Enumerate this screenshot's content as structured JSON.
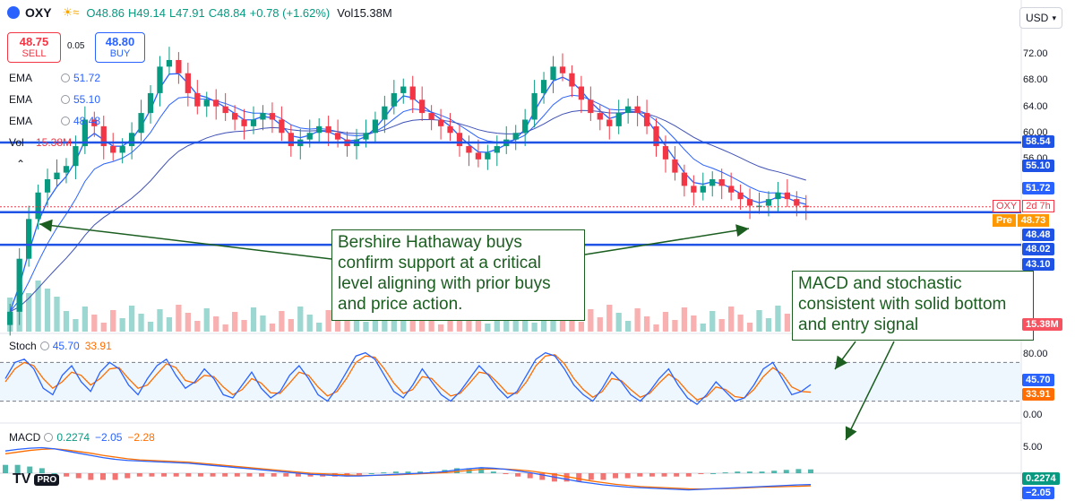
{
  "header": {
    "symbol": "OXY",
    "weather_icon": "sun-cloud-icon",
    "open": "O48.86",
    "high": "H49.14",
    "low": "L47.91",
    "close": "C48.84",
    "change": "+0.78 (+1.62%)",
    "volume": "Vol15.38M",
    "currency": "USD"
  },
  "trade": {
    "sell_price": "48.75",
    "sell_label": "SELL",
    "spread": "0.05",
    "buy_price": "48.80",
    "buy_label": "BUY"
  },
  "indicators": {
    "ema_label": "EMA",
    "ema1": "51.72",
    "ema2": "55.10",
    "ema3": "48.48",
    "vol_label": "Vol",
    "vol_value": "15.38M",
    "stoch_label": "Stoch",
    "stoch_k": "45.70",
    "stoch_d": "33.91",
    "macd_label": "MACD",
    "macd1": "0.2274",
    "macd2": "−2.05",
    "macd3": "−2.28"
  },
  "annotations": {
    "note1": "Bershire Hathaway buys confirm support at a critical level aligning with prior buys and price action.",
    "note2": "MACD and stochastic consistent with solid bottom and entry signal"
  },
  "price_tags": {
    "oxy_label": "OXY",
    "oxy_time": "2d 7h",
    "pre_label": "Pre",
    "pre_value": "48.73",
    "vol_tag": "15.38M",
    "stoch_k_tag": "45.70",
    "stoch_d_tag": "33.91",
    "macd_tag1": "0.2274",
    "macd_tag2": "−2.05"
  },
  "colors": {
    "up": "#089981",
    "down": "#f23645",
    "level": "#1e53e5",
    "ema_fast": "#2962ff",
    "stoch_k": "#2962ff",
    "stoch_d": "#ff6d00",
    "note": "#1b5e20"
  },
  "logo": {
    "brand": "TV",
    "tier": "PRO"
  },
  "chart_data": {
    "type": "candlestick",
    "price_axis": {
      "ticks": [
        "72.00",
        "68.00",
        "64.00",
        "60.00",
        "56.00"
      ],
      "level_tags": [
        "58.54",
        "55.10",
        "51.72",
        "48.48",
        "48.02",
        "43.10"
      ],
      "ylim": [
        30,
        76
      ]
    },
    "support_levels": [
      58.54,
      48.02,
      43.1
    ],
    "close_series": [
      33,
      41,
      47,
      51,
      53,
      54,
      55,
      58,
      62,
      61,
      58,
      57,
      58,
      60,
      63,
      66,
      70,
      71,
      69,
      66,
      64,
      65,
      64,
      63,
      62,
      61,
      62,
      63,
      62,
      60,
      58,
      59,
      60,
      61,
      60,
      59,
      58,
      59,
      60,
      62,
      64,
      66,
      67,
      65,
      63,
      62,
      61,
      60,
      58,
      57,
      56,
      57,
      58,
      59,
      60,
      62,
      66,
      68,
      70,
      69,
      67,
      65,
      63,
      62,
      61,
      63,
      64,
      63,
      61,
      58,
      56,
      54,
      52,
      51,
      52,
      53,
      52,
      51,
      50,
      49,
      49,
      50,
      51,
      50,
      49,
      48.84
    ],
    "stoch_axis": {
      "ticks": [
        "80.00",
        "0.00"
      ]
    },
    "stoch_bands": [
      80,
      20
    ],
    "stoch_k": [
      55,
      80,
      85,
      70,
      40,
      30,
      60,
      75,
      50,
      35,
      65,
      80,
      70,
      45,
      30,
      55,
      75,
      85,
      60,
      40,
      50,
      70,
      55,
      30,
      25,
      45,
      65,
      40,
      25,
      35,
      60,
      75,
      55,
      30,
      20,
      40,
      65,
      90,
      95,
      85,
      60,
      35,
      25,
      45,
      70,
      50,
      30,
      20,
      35,
      55,
      75,
      60,
      40,
      25,
      35,
      60,
      85,
      95,
      90,
      70,
      45,
      30,
      20,
      40,
      65,
      50,
      30,
      20,
      35,
      55,
      70,
      45,
      25,
      15,
      30,
      50,
      35,
      20,
      25,
      45,
      70,
      80,
      55,
      30,
      35,
      45.7
    ],
    "stoch_d": [
      50,
      70,
      80,
      75,
      55,
      40,
      50,
      65,
      60,
      45,
      55,
      70,
      72,
      55,
      40,
      45,
      62,
      78,
      72,
      52,
      48,
      60,
      58,
      42,
      30,
      38,
      55,
      48,
      33,
      32,
      48,
      65,
      60,
      42,
      28,
      35,
      55,
      80,
      90,
      88,
      70,
      48,
      32,
      38,
      58,
      55,
      40,
      28,
      32,
      48,
      65,
      62,
      48,
      32,
      32,
      50,
      75,
      90,
      92,
      78,
      55,
      38,
      26,
      35,
      55,
      52,
      38,
      26,
      32,
      48,
      62,
      52,
      35,
      22,
      27,
      42,
      38,
      27,
      25,
      38,
      58,
      72,
      62,
      42,
      35,
      33.91
    ],
    "macd_axis": {
      "ticks": [
        "5.00",
        "0.00"
      ]
    },
    "macd_line": [
      4.0,
      4.3,
      4.5,
      4.6,
      4.4,
      4.0,
      3.6,
      3.2,
      2.8,
      2.5,
      2.3,
      2.2,
      2.1,
      2.0,
      1.9,
      1.8,
      1.6,
      1.4,
      1.2,
      1.0,
      0.8,
      0.6,
      0.4,
      0.2,
      0.0,
      -0.2,
      -0.3,
      -0.4,
      -0.5,
      -0.5,
      -0.4,
      -0.3,
      -0.2,
      -0.1,
      0.0,
      0.1,
      0.3,
      0.6,
      0.8,
      1.0,
      0.9,
      0.7,
      0.4,
      0.1,
      -0.3,
      -0.7,
      -1.1,
      -1.5,
      -1.8,
      -2.1,
      -2.3,
      -2.5,
      -2.6,
      -2.7,
      -2.8,
      -2.9,
      -3.0,
      -2.9,
      -2.8,
      -2.7,
      -2.6,
      -2.5,
      -2.4,
      -2.3,
      -2.2,
      -2.1,
      -2.05
    ],
    "macd_signal": [
      3.5,
      3.8,
      4.1,
      4.3,
      4.4,
      4.2,
      3.9,
      3.6,
      3.2,
      2.9,
      2.6,
      2.4,
      2.3,
      2.2,
      2.1,
      2.0,
      1.8,
      1.6,
      1.4,
      1.2,
      1.0,
      0.8,
      0.6,
      0.4,
      0.2,
      0.0,
      -0.1,
      -0.2,
      -0.3,
      -0.4,
      -0.4,
      -0.35,
      -0.3,
      -0.2,
      -0.1,
      0.0,
      0.1,
      0.3,
      0.5,
      0.7,
      0.8,
      0.75,
      0.6,
      0.4,
      0.1,
      -0.2,
      -0.6,
      -1.0,
      -1.4,
      -1.7,
      -2.0,
      -2.2,
      -2.4,
      -2.5,
      -2.6,
      -2.7,
      -2.8,
      -2.85,
      -2.8,
      -2.75,
      -2.7,
      -2.6,
      -2.5,
      -2.45,
      -2.4,
      -2.35,
      -2.28
    ]
  }
}
